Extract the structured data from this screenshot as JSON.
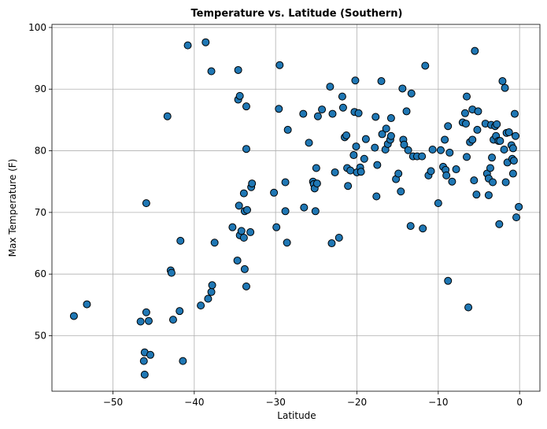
{
  "chart_data": {
    "type": "scatter",
    "title": "Temperature vs. Latitude (Southern)",
    "xlabel": "Latitude",
    "ylabel": "Max Temperature (F)",
    "xlim": [
      -57.5,
      2.5
    ],
    "ylim": [
      41,
      100.5
    ],
    "xticks": [
      -50,
      -40,
      -30,
      -20,
      -10,
      0
    ],
    "yticks": [
      50,
      60,
      70,
      80,
      90,
      100
    ],
    "grid": true,
    "marker_color": "#1f77b4",
    "marker_edge_color": "#000000",
    "series": [
      {
        "points": [
          [
            -54.8,
            53.2
          ],
          [
            -53.2,
            55.1
          ],
          [
            -46.6,
            52.3
          ],
          [
            -46.2,
            45.9
          ],
          [
            -46.1,
            43.7
          ],
          [
            -46.1,
            47.3
          ],
          [
            -45.9,
            53.8
          ],
          [
            -45.9,
            71.5
          ],
          [
            -45.6,
            52.4
          ],
          [
            -45.4,
            46.9
          ],
          [
            -43.3,
            85.6
          ],
          [
            -42.9,
            60.6
          ],
          [
            -42.8,
            60.2
          ],
          [
            -42.6,
            52.6
          ],
          [
            -41.8,
            54.0
          ],
          [
            -41.7,
            65.4
          ],
          [
            -41.4,
            45.9
          ],
          [
            -40.8,
            97.1
          ],
          [
            -39.2,
            54.9
          ],
          [
            -38.6,
            97.6
          ],
          [
            -38.3,
            56.0
          ],
          [
            -37.9,
            92.9
          ],
          [
            -37.9,
            57.1
          ],
          [
            -37.8,
            58.2
          ],
          [
            -37.5,
            65.1
          ],
          [
            -35.3,
            67.6
          ],
          [
            -34.7,
            62.2
          ],
          [
            -34.6,
            93.1
          ],
          [
            -34.6,
            88.3
          ],
          [
            -34.5,
            71.1
          ],
          [
            -34.4,
            88.9
          ],
          [
            -34.4,
            66.3
          ],
          [
            -34.2,
            67.0
          ],
          [
            -33.9,
            65.9
          ],
          [
            -33.9,
            73.1
          ],
          [
            -33.8,
            60.8
          ],
          [
            -33.8,
            70.2
          ],
          [
            -33.6,
            87.2
          ],
          [
            -33.6,
            80.3
          ],
          [
            -33.6,
            58.0
          ],
          [
            -33.5,
            70.4
          ],
          [
            -33.1,
            66.8
          ],
          [
            -33.0,
            74.1
          ],
          [
            -32.9,
            74.7
          ],
          [
            -30.2,
            73.2
          ],
          [
            -29.9,
            67.6
          ],
          [
            -29.6,
            86.8
          ],
          [
            -29.5,
            93.9
          ],
          [
            -28.8,
            70.2
          ],
          [
            -28.8,
            74.9
          ],
          [
            -28.6,
            65.1
          ],
          [
            -28.5,
            83.4
          ],
          [
            -26.6,
            86.0
          ],
          [
            -26.5,
            70.8
          ],
          [
            -25.9,
            81.3
          ],
          [
            -25.4,
            75.0
          ],
          [
            -25.3,
            74.6
          ],
          [
            -25.2,
            73.9
          ],
          [
            -25.1,
            70.2
          ],
          [
            -25.0,
            77.2
          ],
          [
            -24.9,
            74.7
          ],
          [
            -24.8,
            85.6
          ],
          [
            -24.3,
            86.7
          ],
          [
            -23.3,
            90.4
          ],
          [
            -23.1,
            65.0
          ],
          [
            -23.0,
            86.0
          ],
          [
            -22.7,
            76.5
          ],
          [
            -22.2,
            65.9
          ],
          [
            -21.8,
            88.8
          ],
          [
            -21.7,
            87.0
          ],
          [
            -21.5,
            82.2
          ],
          [
            -21.3,
            82.5
          ],
          [
            -21.2,
            77.2
          ],
          [
            -21.1,
            74.3
          ],
          [
            -20.8,
            76.8
          ],
          [
            -20.4,
            79.3
          ],
          [
            -20.3,
            86.3
          ],
          [
            -20.2,
            91.4
          ],
          [
            -20.1,
            80.7
          ],
          [
            -20.0,
            76.5
          ],
          [
            -19.8,
            86.1
          ],
          [
            -19.6,
            77.3
          ],
          [
            -19.5,
            76.6
          ],
          [
            -19.1,
            78.7
          ],
          [
            -18.9,
            81.9
          ],
          [
            -17.8,
            80.5
          ],
          [
            -17.7,
            85.5
          ],
          [
            -17.6,
            72.6
          ],
          [
            -17.5,
            77.7
          ],
          [
            -17.0,
            91.3
          ],
          [
            -16.9,
            82.7
          ],
          [
            -16.5,
            80.2
          ],
          [
            -16.4,
            83.6
          ],
          [
            -16.2,
            81.1
          ],
          [
            -15.9,
            81.8
          ],
          [
            -15.8,
            85.3
          ],
          [
            -15.8,
            82.4
          ],
          [
            -15.2,
            75.4
          ],
          [
            -14.9,
            76.3
          ],
          [
            -14.6,
            73.4
          ],
          [
            -14.4,
            90.1
          ],
          [
            -14.3,
            81.8
          ],
          [
            -14.2,
            81.0
          ],
          [
            -13.9,
            86.4
          ],
          [
            -13.7,
            80.1
          ],
          [
            -13.4,
            67.8
          ],
          [
            -13.3,
            89.3
          ],
          [
            -13.1,
            79.1
          ],
          [
            -12.6,
            79.1
          ],
          [
            -12.0,
            79.1
          ],
          [
            -11.9,
            67.4
          ],
          [
            -11.6,
            93.8
          ],
          [
            -11.2,
            76.0
          ],
          [
            -10.9,
            76.7
          ],
          [
            -10.7,
            80.2
          ],
          [
            -10.0,
            71.5
          ],
          [
            -9.7,
            80.1
          ],
          [
            -9.4,
            77.4
          ],
          [
            -9.2,
            81.8
          ],
          [
            -9.1,
            76.9
          ],
          [
            -9.0,
            76.0
          ],
          [
            -8.8,
            84.0
          ],
          [
            -8.8,
            58.9
          ],
          [
            -8.6,
            79.7
          ],
          [
            -8.3,
            75.0
          ],
          [
            -7.8,
            77.0
          ],
          [
            -7.0,
            84.6
          ],
          [
            -6.7,
            86.1
          ],
          [
            -6.6,
            84.4
          ],
          [
            -6.5,
            88.8
          ],
          [
            -6.5,
            79.0
          ],
          [
            -6.3,
            54.6
          ],
          [
            -6.1,
            81.4
          ],
          [
            -5.8,
            86.7
          ],
          [
            -5.8,
            81.8
          ],
          [
            -5.6,
            75.2
          ],
          [
            -5.5,
            96.2
          ],
          [
            -5.3,
            72.9
          ],
          [
            -5.2,
            83.4
          ],
          [
            -5.1,
            86.4
          ],
          [
            -4.2,
            84.4
          ],
          [
            -4.0,
            76.3
          ],
          [
            -3.8,
            72.8
          ],
          [
            -3.8,
            75.5
          ],
          [
            -3.6,
            77.2
          ],
          [
            -3.5,
            84.2
          ],
          [
            -3.4,
            78.9
          ],
          [
            -3.3,
            74.9
          ],
          [
            -3.2,
            81.8
          ],
          [
            -3.0,
            84.0
          ],
          [
            -2.9,
            82.4
          ],
          [
            -2.8,
            84.3
          ],
          [
            -2.6,
            81.6
          ],
          [
            -2.5,
            68.1
          ],
          [
            -2.4,
            81.6
          ],
          [
            -2.1,
            91.3
          ],
          [
            -1.9,
            80.2
          ],
          [
            -1.8,
            90.2
          ],
          [
            -1.7,
            74.9
          ],
          [
            -1.6,
            82.9
          ],
          [
            -1.5,
            78.1
          ],
          [
            -1.3,
            83.0
          ],
          [
            -1.0,
            80.9
          ],
          [
            -0.9,
            78.7
          ],
          [
            -0.8,
            80.4
          ],
          [
            -0.8,
            76.3
          ],
          [
            -0.7,
            78.4
          ],
          [
            -0.6,
            86.0
          ],
          [
            -0.5,
            82.4
          ],
          [
            -0.4,
            69.2
          ],
          [
            -0.1,
            70.9
          ]
        ]
      }
    ]
  }
}
